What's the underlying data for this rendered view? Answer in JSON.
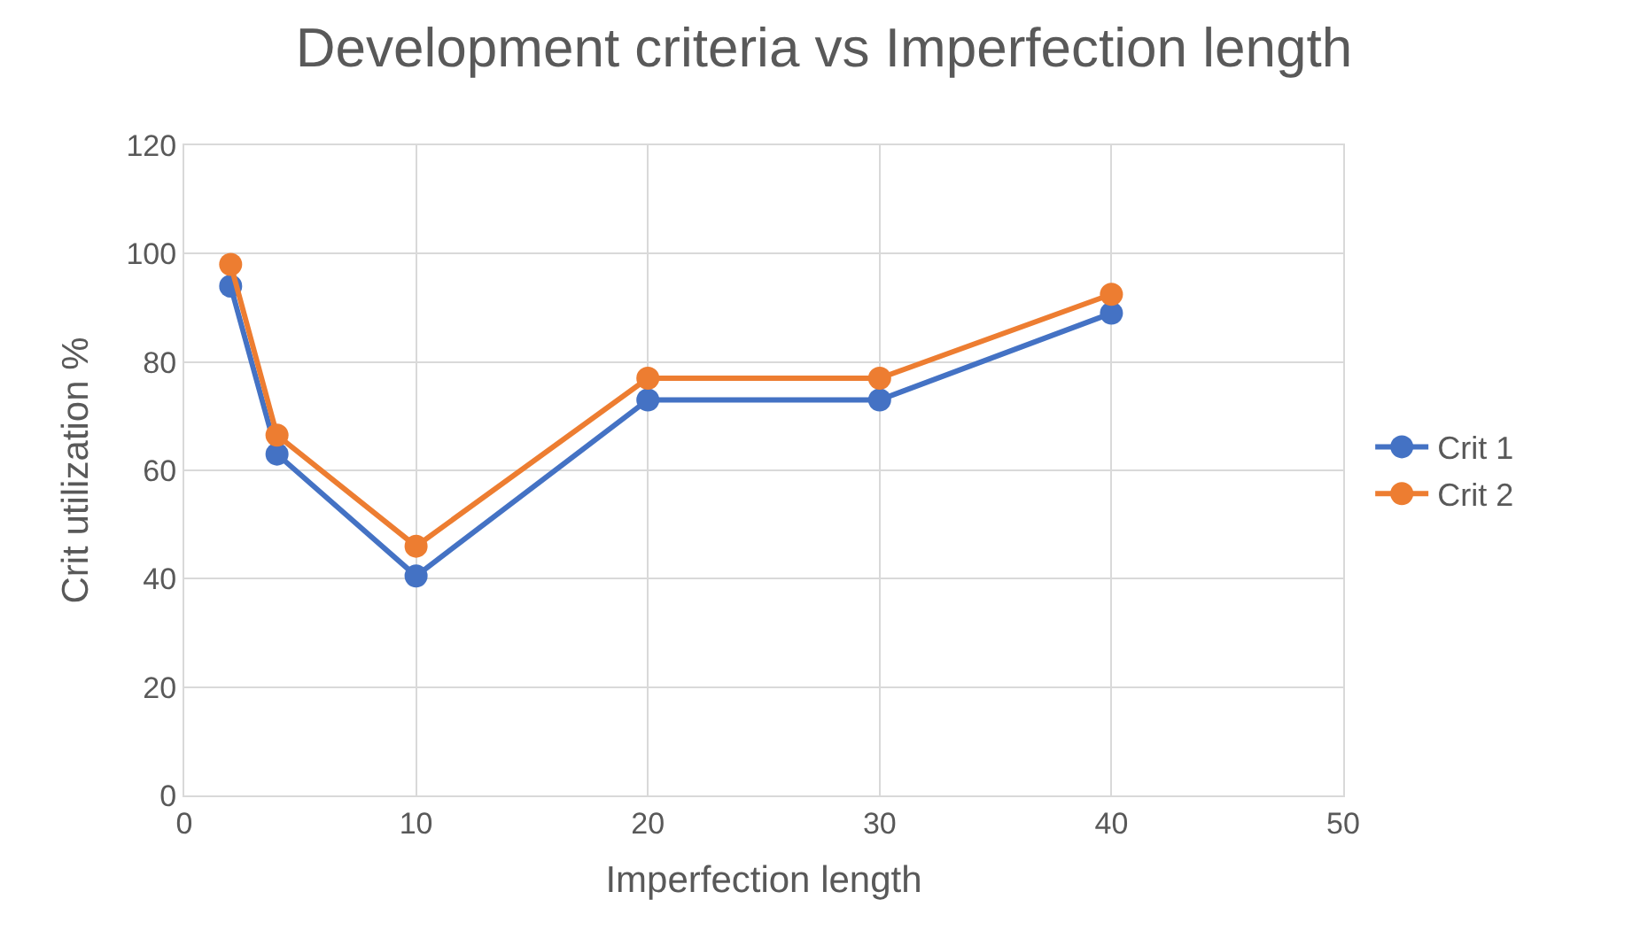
{
  "chart_data": {
    "type": "line",
    "title": "Development criteria vs Imperfection length",
    "xlabel": "Imperfection length",
    "ylabel": "Crit utilization %",
    "x": [
      2,
      4,
      10,
      20,
      30,
      40
    ],
    "series": [
      {
        "name": "Crit 1",
        "color": "#4472c4",
        "values": [
          94,
          63,
          40.5,
          73,
          73,
          89
        ]
      },
      {
        "name": "Crit 2",
        "color": "#ed7d31",
        "values": [
          98,
          66.5,
          46,
          77,
          77,
          92.5
        ]
      }
    ],
    "xlim": [
      0,
      50
    ],
    "xticks": [
      0,
      10,
      20,
      30,
      40,
      50
    ],
    "ylim": [
      0,
      120
    ],
    "yticks": [
      0,
      20,
      40,
      60,
      80,
      100,
      120
    ],
    "grid": true,
    "legend": "right",
    "marker": "circle",
    "line_style": "solid"
  }
}
